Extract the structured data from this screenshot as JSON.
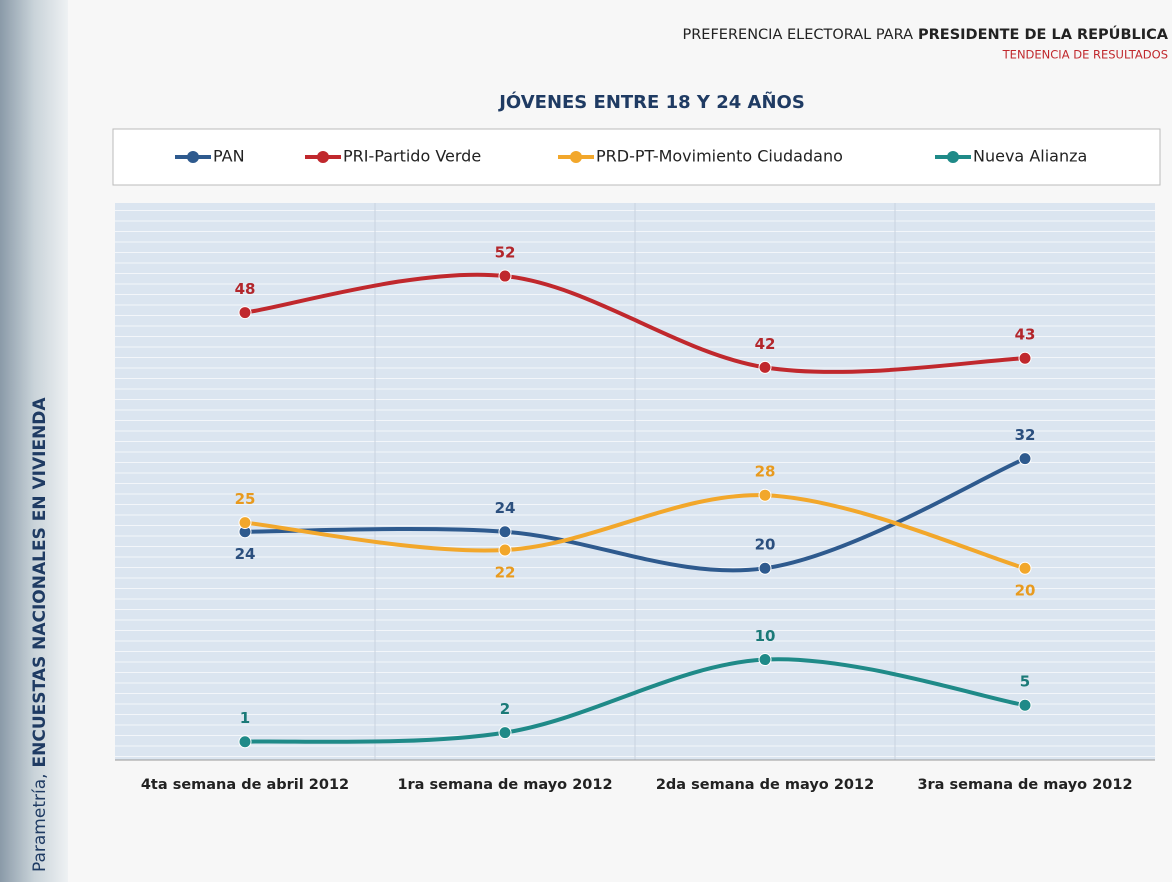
{
  "chart_data": {
    "type": "line",
    "supertitle": "PREFERENCIA ELECTORAL PARA",
    "supertitle_emphasis": "PRESIDENTE DE LA REPÚBLICA",
    "subtitle": "TENDENCIA DE RESULTADOS",
    "title": "JÓVENES ENTRE 18 Y 24 AÑOS",
    "side_label": "Parametría,",
    "side_label_emphasis": "ENCUESTAS NACIONALES EN VIVIENDA",
    "categories": [
      "4ta semana de abril 2012",
      "1ra semana de mayo 2012",
      "2da semana de mayo 2012",
      "3ra semana de mayo 2012"
    ],
    "ylim": [
      -1,
      60
    ],
    "smooth": true,
    "series": [
      {
        "name": "PAN",
        "color": "#2e5a8e",
        "label_color": "#2b4f7e",
        "values": [
          24,
          24,
          20,
          32
        ]
      },
      {
        "name": "PRI-Partido Verde",
        "color": "#c0282d",
        "label_color": "#b3262b",
        "values": [
          48,
          52,
          42,
          43
        ]
      },
      {
        "name": "PRD-PT-Movimiento Ciudadano",
        "color": "#f2a72b",
        "label_color": "#e89a1e",
        "values": [
          25,
          22,
          28,
          20
        ]
      },
      {
        "name": "Nueva Alianza",
        "color": "#1f8a88",
        "label_color": "#1b7a78",
        "values": [
          1,
          2,
          10,
          5
        ]
      }
    ]
  }
}
